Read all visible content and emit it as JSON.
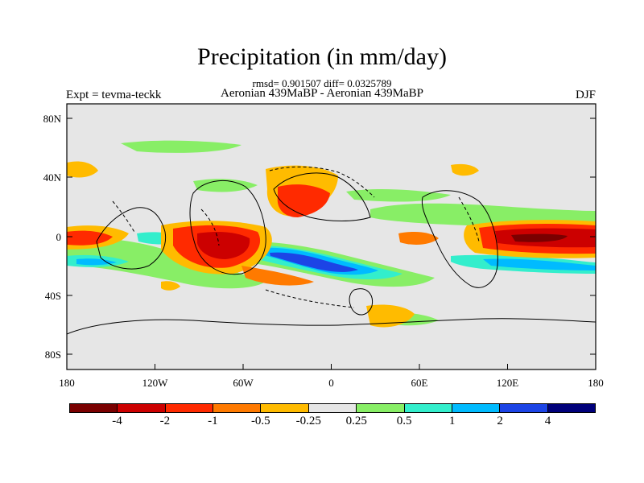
{
  "header": {
    "title": "Precipitation (in mm/day)",
    "stats": "rmsd= 0.901507 diff= 0.0325789",
    "expt": "Expt = tevma-teckk",
    "subtitle": "Aeronian 439MaBP - Aeronian 439MaBP",
    "season": "DJF"
  },
  "axes": {
    "x_ticks": [
      "180",
      "120W",
      "60W",
      "0",
      "60E",
      "120E",
      "180"
    ],
    "y_ticks": [
      "80N",
      "40N",
      "0",
      "40S",
      "80S"
    ],
    "x_range": [
      -180,
      180
    ],
    "y_range": [
      -90,
      90
    ]
  },
  "colorbar": {
    "colors": [
      "#7a0000",
      "#cc0000",
      "#ff2a00",
      "#ff7a00",
      "#ffbb00",
      "#e6e6e6",
      "#88ee66",
      "#33eecc",
      "#00bbff",
      "#1c44e6",
      "#00007a"
    ],
    "labels": [
      "-4",
      "-2",
      "-1",
      "-0.5",
      "-0.25",
      "0.25",
      "0.5",
      "1",
      "2",
      "4"
    ]
  },
  "map": {
    "background": "#e6e6e6",
    "land_outline": "#000000"
  }
}
